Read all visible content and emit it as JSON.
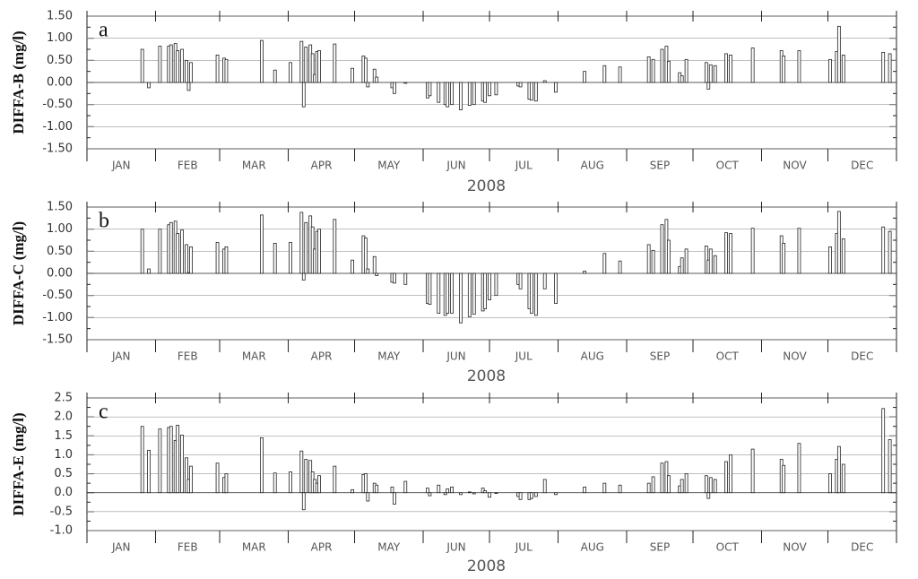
{
  "charts": [
    {
      "type": "bar",
      "panel": "a",
      "ylabel": "DIFFA-B (mg/l)",
      "xlabel": "2008",
      "months": [
        "JAN",
        "FEB",
        "MAR",
        "APR",
        "MAY",
        "JUN",
        "JUL",
        "AUG",
        "SEP",
        "OCT",
        "NOV",
        "DEC"
      ],
      "month_starts": [
        1,
        32,
        61,
        92,
        122,
        153,
        183,
        214,
        245,
        275,
        306,
        336,
        367
      ],
      "xlim": [
        1,
        367
      ],
      "ylim": [
        -1.5,
        1.5
      ],
      "yticks": [
        {
          "value": -1.5,
          "label": "-1.50"
        },
        {
          "value": -1.0,
          "label": "-1.00"
        },
        {
          "value": -0.5,
          "label": "-0.50"
        },
        {
          "value": 0,
          "label": "0.00"
        },
        {
          "value": 0.5,
          "label": "0.50"
        },
        {
          "value": 1.0,
          "label": "1.00"
        },
        {
          "value": 1.5,
          "label": "1.50"
        }
      ],
      "yticks_minor": [
        -1.25,
        -0.75,
        -0.25,
        0.25,
        0.75,
        1.25
      ],
      "color": "#ffffff",
      "x": [
        26,
        29,
        34,
        38,
        39,
        41,
        42,
        44,
        46,
        47,
        48,
        60,
        63,
        64,
        80,
        86,
        93,
        98,
        99,
        100,
        102,
        103,
        104,
        105,
        106,
        113,
        121,
        126,
        127,
        128,
        131,
        132,
        139,
        140,
        145,
        155,
        156,
        160,
        163,
        164,
        166,
        170,
        174,
        176,
        180,
        181,
        183,
        186,
        196,
        197,
        201,
        202,
        204,
        208,
        213,
        226,
        235,
        242,
        255,
        257,
        261,
        263,
        264,
        269,
        270,
        272,
        281,
        282,
        283,
        285,
        290,
        292,
        302,
        315,
        316,
        323,
        337,
        340,
        341,
        343,
        361,
        364
      ],
      "values": [
        0.75,
        -0.12,
        0.82,
        0.82,
        0.85,
        0.88,
        0.72,
        0.75,
        0.5,
        -0.18,
        0.45,
        0.62,
        0.55,
        0.52,
        0.95,
        0.28,
        0.45,
        0.93,
        -0.55,
        0.8,
        0.85,
        0.65,
        0.18,
        0.7,
        0.72,
        0.87,
        0.32,
        0.6,
        0.55,
        -0.1,
        0.3,
        0.12,
        -0.12,
        -0.25,
        -0.02,
        -0.35,
        -0.3,
        -0.45,
        -0.5,
        -0.55,
        -0.5,
        -0.62,
        -0.52,
        -0.5,
        -0.42,
        -0.45,
        -0.3,
        -0.28,
        -0.08,
        -0.1,
        -0.38,
        -0.4,
        -0.42,
        0.04,
        -0.22,
        0.25,
        0.38,
        0.35,
        0.58,
        0.52,
        0.75,
        0.82,
        0.48,
        0.22,
        0.15,
        0.52,
        0.45,
        -0.15,
        0.4,
        0.38,
        0.65,
        0.62,
        0.78,
        0.72,
        0.6,
        0.72,
        0.52,
        0.7,
        1.27,
        0.62,
        0.68,
        0.65
      ]
    },
    {
      "type": "bar",
      "panel": "b",
      "ylabel": "DIFFA-C (mg/l)",
      "xlabel": "2008",
      "months": [
        "JAN",
        "FEB",
        "MAR",
        "APR",
        "MAY",
        "JUN",
        "JUL",
        "AUG",
        "SEP",
        "OCT",
        "NOV",
        "DEC"
      ],
      "month_starts": [
        1,
        32,
        61,
        92,
        122,
        153,
        183,
        214,
        245,
        275,
        306,
        336,
        367
      ],
      "xlim": [
        1,
        367
      ],
      "ylim": [
        -1.5,
        1.5
      ],
      "yticks": [
        {
          "value": -1.5,
          "label": "-1.50"
        },
        {
          "value": -1.0,
          "label": "-1.00"
        },
        {
          "value": -0.5,
          "label": "-0.50"
        },
        {
          "value": 0,
          "label": "0.00"
        },
        {
          "value": 0.5,
          "label": "0.50"
        },
        {
          "value": 1.0,
          "label": "1.00"
        },
        {
          "value": 1.5,
          "label": "1.50"
        }
      ],
      "yticks_minor": [
        -1.25,
        -0.75,
        -0.25,
        0.25,
        0.75,
        1.25
      ],
      "color": "#ffffff",
      "x": [
        26,
        29,
        34,
        38,
        39,
        41,
        42,
        44,
        46,
        47,
        48,
        60,
        63,
        64,
        80,
        86,
        93,
        98,
        99,
        100,
        102,
        103,
        104,
        105,
        106,
        113,
        121,
        126,
        127,
        128,
        131,
        132,
        139,
        140,
        145,
        155,
        156,
        160,
        163,
        164,
        166,
        170,
        174,
        176,
        180,
        181,
        183,
        186,
        196,
        197,
        201,
        202,
        204,
        208,
        213,
        226,
        235,
        242,
        255,
        257,
        261,
        263,
        264,
        269,
        270,
        272,
        281,
        282,
        283,
        285,
        290,
        292,
        302,
        315,
        316,
        323,
        337,
        340,
        341,
        343,
        361,
        364
      ],
      "values": [
        1.0,
        0.1,
        1.0,
        1.1,
        1.15,
        1.18,
        0.9,
        0.98,
        0.65,
        0.02,
        0.6,
        0.7,
        0.55,
        0.6,
        1.32,
        0.68,
        0.7,
        1.38,
        -0.15,
        1.15,
        1.3,
        1.05,
        0.55,
        0.95,
        1.0,
        1.22,
        0.3,
        0.85,
        0.8,
        0.1,
        0.38,
        -0.05,
        -0.2,
        -0.22,
        -0.25,
        -0.68,
        -0.7,
        -0.9,
        -0.95,
        -0.9,
        -0.9,
        -1.12,
        -0.98,
        -0.92,
        -0.85,
        -0.8,
        -0.6,
        -0.5,
        -0.25,
        -0.35,
        -0.8,
        -0.9,
        -0.95,
        -0.35,
        -0.68,
        0.05,
        0.45,
        0.28,
        0.65,
        0.52,
        1.1,
        1.22,
        0.75,
        0.15,
        0.35,
        0.55,
        0.62,
        0.3,
        0.55,
        0.4,
        0.92,
        0.9,
        1.02,
        0.85,
        0.68,
        1.02,
        0.6,
        0.9,
        1.4,
        0.78,
        1.05,
        0.95
      ]
    },
    {
      "type": "bar",
      "panel": "c",
      "ylabel": "DIFFA-E (mg/l)",
      "xlabel": "2008",
      "months": [
        "JAN",
        "FEB",
        "MAR",
        "APR",
        "MAY",
        "JUN",
        "JUL",
        "AUG",
        "SEP",
        "OCT",
        "NOV",
        "DEC"
      ],
      "month_starts": [
        1,
        32,
        61,
        92,
        122,
        153,
        183,
        214,
        245,
        275,
        306,
        336,
        367
      ],
      "xlim": [
        1,
        367
      ],
      "ylim": [
        -1.0,
        2.5
      ],
      "yticks": [
        {
          "value": -1.0,
          "label": "-1.0"
        },
        -0.5,
        {
          "value": 0,
          "label": "0.0"
        },
        0.5,
        {
          "value": 1.0,
          "label": "1.0"
        },
        1.5,
        {
          "value": 2.0,
          "label": "2.0"
        },
        2.5
      ],
      "yticks_minor": [
        -0.75,
        -0.25,
        0.25,
        0.75,
        1.25,
        1.75,
        2.25
      ],
      "color": "#ffffff",
      "x": [
        26,
        29,
        34,
        38,
        39,
        41,
        42,
        44,
        46,
        47,
        48,
        60,
        63,
        64,
        80,
        86,
        93,
        98,
        99,
        100,
        102,
        103,
        104,
        105,
        106,
        113,
        121,
        126,
        127,
        128,
        131,
        132,
        139,
        140,
        145,
        155,
        156,
        160,
        163,
        164,
        166,
        170,
        174,
        176,
        180,
        181,
        183,
        186,
        196,
        197,
        201,
        202,
        204,
        208,
        213,
        226,
        235,
        242,
        255,
        257,
        261,
        263,
        264,
        269,
        270,
        272,
        281,
        282,
        283,
        285,
        290,
        292,
        302,
        315,
        316,
        323,
        337,
        340,
        341,
        343,
        361,
        364
      ],
      "values": [
        1.75,
        1.12,
        1.68,
        1.72,
        1.75,
        1.38,
        1.78,
        1.52,
        0.92,
        0.35,
        0.7,
        0.78,
        0.4,
        0.5,
        1.45,
        0.52,
        0.55,
        1.1,
        -0.45,
        0.88,
        0.85,
        0.55,
        0.35,
        0.25,
        0.45,
        0.7,
        0.08,
        0.48,
        0.5,
        -0.22,
        0.25,
        0.2,
        0.15,
        -0.3,
        0.3,
        0.12,
        -0.08,
        0.2,
        -0.05,
        0.1,
        0.15,
        -0.05,
        0.02,
        -0.03,
        0.12,
        0.05,
        -0.12,
        -0.02,
        -0.1,
        -0.18,
        -0.18,
        -0.15,
        -0.1,
        0.35,
        -0.05,
        0.15,
        0.25,
        0.2,
        0.25,
        0.42,
        0.78,
        0.82,
        0.45,
        0.18,
        0.35,
        0.5,
        0.45,
        -0.15,
        0.4,
        0.35,
        0.82,
        1.0,
        1.15,
        0.88,
        0.72,
        1.3,
        0.5,
        0.88,
        1.22,
        0.75,
        2.22,
        1.4
      ]
    }
  ]
}
